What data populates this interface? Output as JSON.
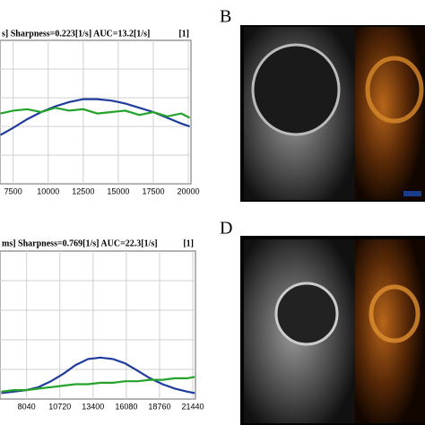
{
  "panel_labels": [
    "B",
    "D"
  ],
  "chart_data": [
    {
      "type": "line",
      "title": "s]  Sharpness=0.223[1/s]  AUC=13.2[1/s]",
      "annotation": "[1]",
      "x": [
        6600,
        7500,
        8500,
        9500,
        10500,
        11500,
        12500,
        13500,
        14500,
        15500,
        16500,
        17500,
        18500,
        19500,
        20100
      ],
      "series": [
        {
          "color": "#1f3c9c",
          "values": [
            34,
            39,
            45,
            50,
            54,
            57,
            59,
            59,
            58,
            56,
            53,
            50,
            46,
            42,
            40
          ]
        },
        {
          "color": "#23a32a",
          "values": [
            49,
            51,
            52,
            50,
            53,
            51,
            52,
            49,
            50,
            51,
            48,
            50,
            47,
            49,
            46
          ]
        }
      ],
      "xlim": [
        6560,
        20190
      ],
      "xticks": [
        7500,
        10000,
        12500,
        15000,
        17500,
        20000
      ],
      "ylim": [
        0,
        100
      ],
      "grid": true
    },
    {
      "type": "line",
      "title": "ms]  Sharpness=0.769[1/s]  AUC=22.3[1/s]",
      "annotation": "[1]",
      "x": [
        6000,
        7000,
        8040,
        9000,
        10000,
        11000,
        12000,
        13000,
        14000,
        15000,
        16000,
        17000,
        18000,
        19000,
        20000,
        21000,
        21600
      ],
      "series": [
        {
          "color": "#1f3c9c",
          "values": [
            4,
            5,
            6,
            8,
            12,
            17,
            23,
            27,
            28,
            27,
            24,
            19,
            14,
            10,
            7,
            5,
            4
          ]
        },
        {
          "color": "#23a32a",
          "values": [
            5,
            6,
            6,
            7,
            8,
            9,
            10,
            10,
            11,
            11,
            12,
            12,
            13,
            13,
            14,
            14,
            15
          ]
        }
      ],
      "xlim": [
        5896,
        21655
      ],
      "xticks": [
        8040,
        10720,
        13400,
        16080,
        18760,
        21440
      ],
      "ylim": [
        0,
        100
      ],
      "grid": true
    }
  ]
}
